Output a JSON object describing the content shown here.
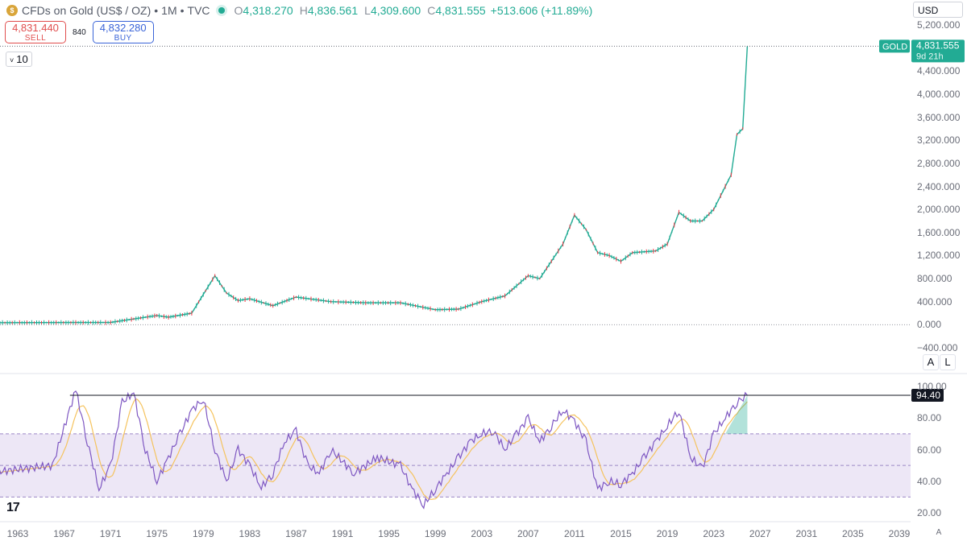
{
  "header": {
    "logo_icon": "gold-coin-icon",
    "symbol": "CFDs on Gold (US$ / OZ)",
    "interval": "1M",
    "source": "TVC",
    "open_key": "O",
    "open": "4,318.270",
    "high_key": "H",
    "high": "4,836.561",
    "low_key": "L",
    "low": "4,309.600",
    "close_key": "C",
    "close": "4,831.555",
    "change": "+513.606 (+11.89%)"
  },
  "trade": {
    "sell_price": "4,831.440",
    "sell_label": "SELL",
    "spread": "840",
    "buy_price": "4,832.280",
    "buy_label": "BUY"
  },
  "indicator_toggle": {
    "chevron": "˅",
    "value": "10"
  },
  "currency": "USD",
  "price_axis": {
    "ticks": [
      "5,200.000",
      "4,400.000",
      "4,000.000",
      "3,600.000",
      "3,200.000",
      "2,800.000",
      "2,400.000",
      "2,000.000",
      "1,600.000",
      "1,200.000",
      "800.000",
      "400.000",
      "0.000",
      "−400.000"
    ],
    "gold_tag": "GOLD",
    "last_price": "4,831.555",
    "countdown": "9d 21h"
  },
  "pane_buttons": {
    "auto": "A",
    "log": "L"
  },
  "rsi_axis": {
    "ticks": [
      "100.00",
      "80.00",
      "60.00",
      "40.00",
      "20.00"
    ],
    "current": "94.40"
  },
  "time_axis": {
    "ticks": [
      "1963",
      "1967",
      "1971",
      "1975",
      "1979",
      "1983",
      "1987",
      "1991",
      "1995",
      "1999",
      "2003",
      "2007",
      "2011",
      "2015",
      "2019",
      "2023",
      "2027",
      "2031",
      "2035",
      "2039"
    ],
    "auto_label": "A"
  },
  "watermark": "17",
  "colors": {
    "up": "#22ab94",
    "down": "#f23645",
    "rsi": "#7e57c2",
    "rsi_ma": "#f5c35e",
    "rsi_band": "#ede7f6",
    "gold_tag": "#22ab94"
  },
  "chart_data": {
    "type": "line",
    "series": [
      {
        "x": [
          1960,
          1968,
          1971,
          1973,
          1975,
          1976,
          1978,
          1980,
          1981,
          1982,
          1983,
          1985,
          1987,
          1990,
          1993,
          1996,
          1999,
          2001,
          2003,
          2005,
          2007,
          2008,
          2009,
          2010,
          2011,
          2012,
          2013,
          2014,
          2015,
          2016,
          2018,
          2019,
          2020,
          2021,
          2022,
          2023,
          2024,
          2024.5,
          2025,
          2025.5,
          2025.9
        ],
        "values": [
          35,
          38,
          40,
          100,
          160,
          130,
          200,
          850,
          550,
          420,
          450,
          330,
          480,
          400,
          380,
          380,
          260,
          270,
          400,
          500,
          850,
          800,
          1100,
          1400,
          1900,
          1650,
          1250,
          1200,
          1100,
          1250,
          1280,
          1400,
          1950,
          1800,
          1800,
          2000,
          2400,
          2600,
          3300,
          3400,
          4831.555
        ]
      },
      {
        "x": [
          1960,
          1966,
          1968,
          1969,
          1970,
          1971,
          1972,
          1973,
          1974,
          1975,
          1976,
          1977,
          1978,
          1979,
          1980,
          1981,
          1982,
          1983,
          1984,
          1985,
          1986,
          1987,
          1988,
          1989,
          1990,
          1992,
          1994,
          1996,
          1997,
          1998,
          1999,
          2000,
          2001,
          2002,
          2003,
          2004,
          2005,
          2006,
          2007,
          2008,
          2009,
          2010,
          2011,
          2012,
          2013,
          2014,
          2015,
          2016,
          2017,
          2018,
          2019,
          2020,
          2021,
          2022,
          2023,
          2024,
          2025,
          2025.9
        ],
        "values": [
          45,
          50,
          98,
          65,
          35,
          50,
          90,
          96,
          60,
          40,
          55,
          70,
          85,
          92,
          60,
          40,
          60,
          50,
          36,
          45,
          65,
          72,
          50,
          45,
          60,
          45,
          55,
          50,
          35,
          25,
          35,
          45,
          55,
          65,
          70,
          72,
          60,
          70,
          80,
          65,
          75,
          85,
          78,
          65,
          35,
          40,
          38,
          45,
          55,
          65,
          75,
          85,
          55,
          48,
          70,
          80,
          90,
          94.4
        ]
      }
    ]
  }
}
